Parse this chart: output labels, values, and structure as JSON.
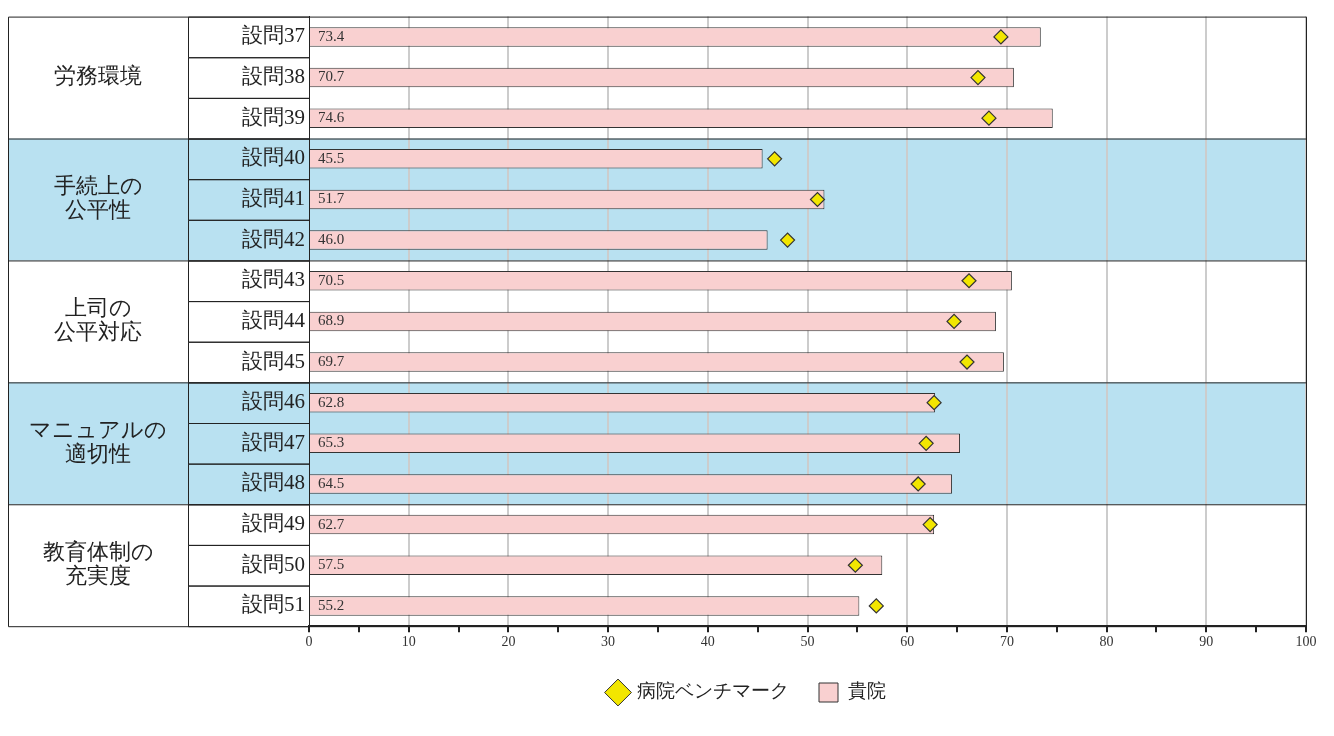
{
  "chart_data": {
    "type": "bar",
    "orientation": "horizontal",
    "categories": [
      "設問37",
      "設問38",
      "設問39",
      "設問40",
      "設問41",
      "設問42",
      "設問43",
      "設問44",
      "設問45",
      "設問46",
      "設問47",
      "設問48",
      "設問49",
      "設問50",
      "設問51"
    ],
    "series": [
      {
        "name": "病院ベンチマーク",
        "type": "scatter",
        "marker": "diamond",
        "color": "#f2e600",
        "values": [
          69.4,
          67.1,
          68.2,
          46.7,
          51.0,
          48.0,
          66.2,
          64.7,
          66.0,
          62.7,
          61.9,
          61.1,
          62.3,
          54.8,
          56.9
        ]
      },
      {
        "name": "貴院",
        "color": "#f9d0d0",
        "values": [
          73.4,
          70.7,
          74.6,
          45.5,
          51.7,
          46.0,
          70.5,
          68.9,
          69.7,
          62.8,
          65.3,
          64.5,
          62.7,
          57.5,
          55.2
        ],
        "value_labels": [
          "73.4",
          "70.7",
          "74.6",
          "45.5",
          "51.7",
          "46.0",
          "70.5",
          "68.9",
          "69.7",
          "62.8",
          "65.3",
          "64.5",
          "62.7",
          "57.5",
          "55.2"
        ]
      }
    ],
    "xlim": [
      0,
      100
    ],
    "xticks": [
      0,
      {
        "value": 5,
        "label": null
      },
      10,
      {
        "value": 15,
        "label": null
      },
      20,
      {
        "value": 25,
        "label": null
      },
      30,
      {
        "value": 35,
        "label": null
      },
      40,
      {
        "value": 45,
        "label": null
      },
      50,
      {
        "value": 55,
        "label": null
      },
      60,
      {
        "value": 65,
        "label": null
      },
      70,
      {
        "value": 75,
        "label": null
      },
      80,
      {
        "value": 85,
        "label": null
      },
      90,
      {
        "value": 95,
        "label": null
      },
      100
    ],
    "bands": [
      {
        "axis": "y",
        "from": "設問40",
        "to": "設問42",
        "color": "#b9e1f1"
      },
      {
        "axis": "y",
        "from": "設問46",
        "to": "設問48",
        "color": "#b9e1f1"
      }
    ],
    "annotations": [
      "労務環境",
      "手続上の公平性",
      "上司の公平対応",
      "マニュアルの適切性",
      "教育体制の充実度"
    ],
    "grid": "x",
    "legend": "bottom"
  }
}
